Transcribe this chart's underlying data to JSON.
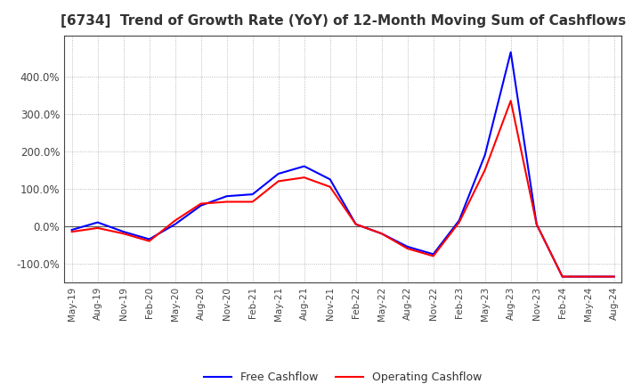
{
  "title": "[6734]  Trend of Growth Rate (YoY) of 12-Month Moving Sum of Cashflows",
  "title_fontsize": 11,
  "x_labels": [
    "May-19",
    "Aug-19",
    "Nov-19",
    "Feb-20",
    "May-20",
    "Aug-20",
    "Nov-20",
    "Feb-21",
    "May-21",
    "Aug-21",
    "Nov-21",
    "Feb-22",
    "May-22",
    "Aug-22",
    "Nov-22",
    "Feb-23",
    "May-23",
    "Aug-23",
    "Nov-23",
    "Feb-24",
    "May-24",
    "Aug-24"
  ],
  "ylim": [
    -150,
    510
  ],
  "yticks": [
    -100.0,
    0.0,
    100.0,
    200.0,
    300.0,
    400.0
  ],
  "operating_cashflow": [
    -15,
    -5,
    -20,
    -40,
    15,
    60,
    65,
    65,
    120,
    130,
    105,
    5,
    -20,
    -60,
    -80,
    10,
    150,
    335,
    5,
    -135,
    -135,
    -135
  ],
  "free_cashflow": [
    -10,
    10,
    -15,
    -35,
    5,
    55,
    80,
    85,
    140,
    160,
    125,
    5,
    -20,
    -55,
    -75,
    15,
    190,
    465,
    5,
    -135,
    -135,
    -135
  ],
  "op_color": "#FF0000",
  "free_color": "#0000FF",
  "grid_color": "#AAAAAA",
  "background_color": "#FFFFFF",
  "legend_op": "Operating Cashflow",
  "legend_free": "Free Cashflow",
  "zero_line_color": "#555555"
}
